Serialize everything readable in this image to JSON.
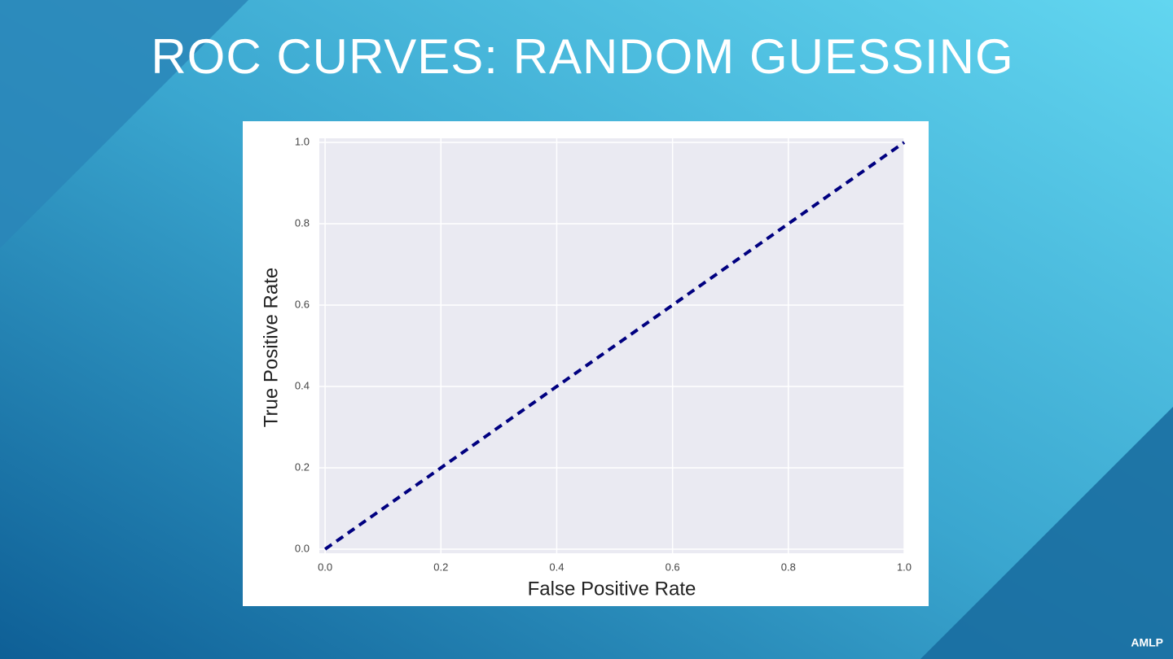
{
  "slide": {
    "title": "ROC CURVES: RANDOM GUESSING",
    "footer": "AMLP"
  },
  "chart_data": {
    "type": "line",
    "xlabel": "False Positive Rate",
    "ylabel": "True Positive Rate",
    "x": [
      0,
      1
    ],
    "values": [
      0,
      1
    ],
    "color": "#000080",
    "dashed": true,
    "xlim": [
      -0.01,
      1.0
    ],
    "ylim": [
      -0.01,
      1.01
    ],
    "xticks": [
      {
        "value": 0,
        "label": "0.0"
      },
      0.2,
      0.4,
      0.6,
      0.8,
      {
        "value": 1,
        "label": "1.0"
      }
    ],
    "yticks": [
      {
        "value": 0,
        "label": "0.0"
      },
      0.2,
      0.4,
      0.6,
      0.8,
      {
        "value": 1,
        "label": "1.0"
      }
    ],
    "grid": true
  }
}
